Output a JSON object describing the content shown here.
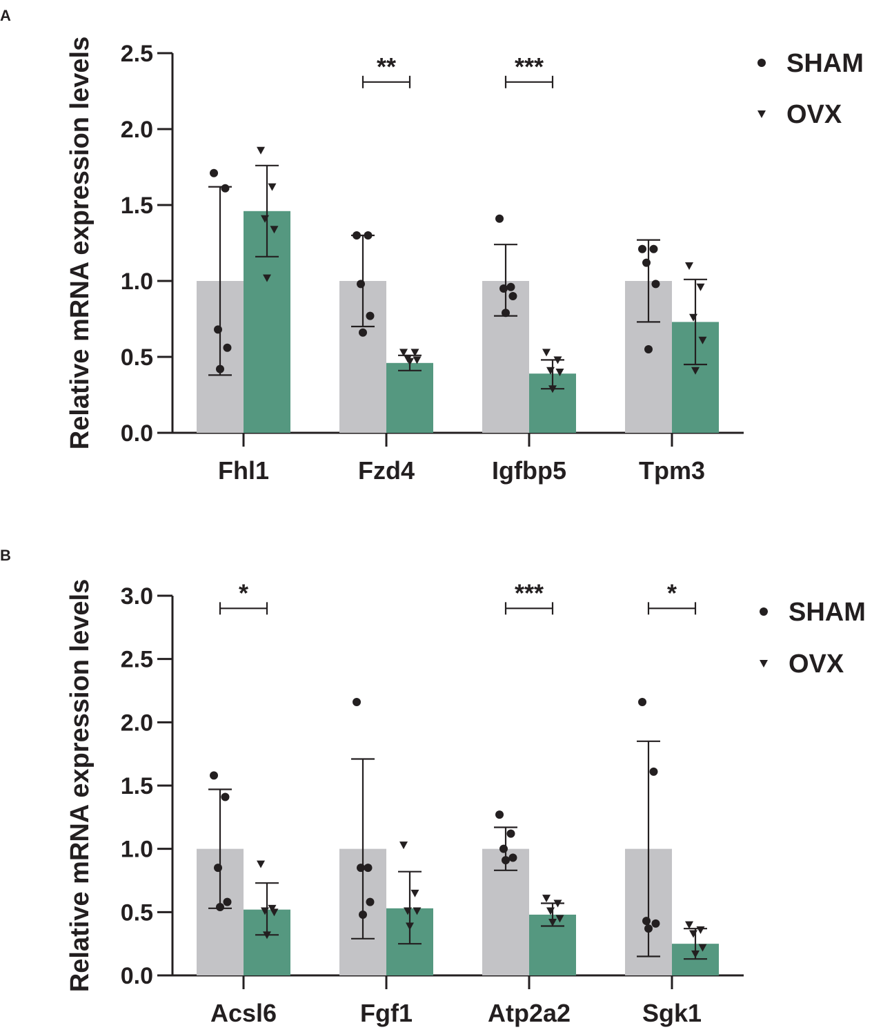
{
  "legend": [
    {
      "name": "SHAM",
      "marker": "circle"
    },
    {
      "name": "OVX",
      "marker": "triangle-down"
    }
  ],
  "colors": {
    "sham": "#c3c3c6",
    "ovx": "#559880",
    "ink": "#231f20"
  },
  "chart_data": [
    {
      "panel": "A",
      "type": "bar",
      "ylabel": "Relative mRNA expression levels",
      "ylim": [
        0,
        2.5
      ],
      "yticks": [
        "0.0",
        "0.5",
        "1.0",
        "1.5",
        "2.0",
        "2.5"
      ],
      "categories": [
        "Fhl1",
        "Fzd4",
        "Igfbp5",
        "Tpm3"
      ],
      "legend_position": "top-right",
      "series": [
        {
          "name": "SHAM",
          "values": [
            1.0,
            1.0,
            1.0,
            1.0
          ],
          "error": [
            [
              0.38,
              1.62
            ],
            [
              0.7,
              1.3
            ],
            [
              0.77,
              1.24
            ],
            [
              0.73,
              1.27
            ]
          ],
          "points": [
            [
              1.71,
              1.61,
              0.68,
              0.56,
              0.42
            ],
            [
              1.3,
              1.3,
              0.98,
              0.77,
              0.66
            ],
            [
              1.41,
              0.96,
              0.95,
              0.9,
              0.79
            ],
            [
              1.21,
              1.21,
              1.12,
              0.98,
              0.55
            ]
          ]
        },
        {
          "name": "OVX",
          "values": [
            1.46,
            0.46,
            0.39,
            0.73
          ],
          "error": [
            [
              1.16,
              1.76
            ],
            [
              0.41,
              0.51
            ],
            [
              0.29,
              0.48
            ],
            [
              0.45,
              1.01
            ]
          ],
          "points": [
            [
              1.86,
              1.62,
              1.41,
              1.34,
              1.02
            ],
            [
              0.53,
              0.53,
              0.49,
              0.48,
              0.47
            ],
            [
              0.53,
              0.48,
              0.41,
              0.4,
              0.29
            ],
            [
              1.1,
              0.96,
              0.76,
              0.61,
              0.41
            ]
          ]
        }
      ],
      "significance": [
        {
          "category": "Fzd4",
          "label": "**",
          "y": 2.31
        },
        {
          "category": "Igfbp5",
          "label": "***",
          "y": 2.31
        }
      ]
    },
    {
      "panel": "B",
      "type": "bar",
      "ylabel": "Relative mRNA expression levels",
      "ylim": [
        0,
        3.0
      ],
      "yticks": [
        "0.0",
        "0.5",
        "1.0",
        "1.5",
        "2.0",
        "2.5",
        "3.0"
      ],
      "categories": [
        "Acsl6",
        "Fgf1",
        "Atp2a2",
        "Sgk1"
      ],
      "legend_position": "top-right",
      "series": [
        {
          "name": "SHAM",
          "values": [
            1.0,
            1.0,
            1.0,
            1.0
          ],
          "error": [
            [
              0.53,
              1.47
            ],
            [
              0.29,
              1.71
            ],
            [
              0.83,
              1.17
            ],
            [
              0.15,
              1.85
            ]
          ],
          "points": [
            [
              1.58,
              1.41,
              0.85,
              0.58,
              0.54
            ],
            [
              2.16,
              0.85,
              0.85,
              0.58,
              0.48
            ],
            [
              1.27,
              1.12,
              1.0,
              0.93,
              0.91
            ],
            [
              2.16,
              1.61,
              0.43,
              0.41,
              0.37
            ]
          ]
        },
        {
          "name": "OVX",
          "values": [
            0.52,
            0.53,
            0.48,
            0.25
          ],
          "error": [
            [
              0.32,
              0.73
            ],
            [
              0.25,
              0.82
            ],
            [
              0.39,
              0.57
            ],
            [
              0.13,
              0.37
            ]
          ],
          "points": [
            [
              0.88,
              0.53,
              0.51,
              0.5,
              0.32
            ],
            [
              1.03,
              0.65,
              0.51,
              0.51,
              0.39
            ],
            [
              0.61,
              0.57,
              0.51,
              0.45,
              0.42
            ],
            [
              0.4,
              0.36,
              0.33,
              0.22,
              0.17
            ]
          ]
        }
      ],
      "significance": [
        {
          "category": "Acsl6",
          "label": "*",
          "y": 2.9
        },
        {
          "category": "Atp2a2",
          "label": "***",
          "y": 2.9
        },
        {
          "category": "Sgk1",
          "label": "*",
          "y": 2.9
        }
      ]
    }
  ]
}
